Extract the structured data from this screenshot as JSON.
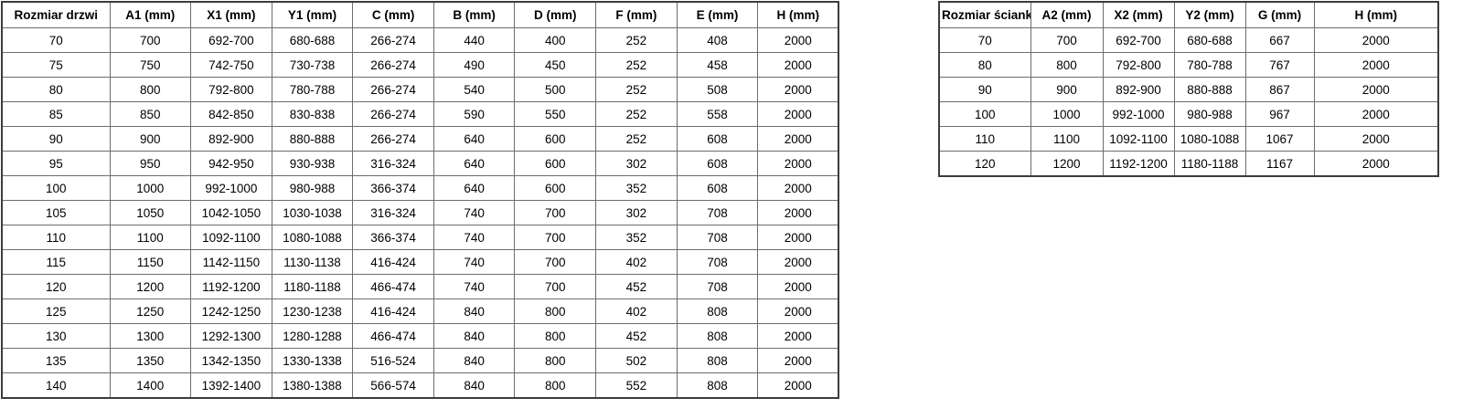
{
  "colors": {
    "background": "#ffffff",
    "text": "#000000",
    "border_outer": "#3c3c3c",
    "border_inner": "#6d6d6d"
  },
  "tables": {
    "doors": {
      "headers": [
        "Rozmiar drzwi",
        "A1 (mm)",
        "X1 (mm)",
        "Y1 (mm)",
        "C (mm)",
        "B (mm)",
        "D (mm)",
        "F (mm)",
        "E (mm)",
        "H (mm)"
      ],
      "rows": [
        [
          "70",
          "700",
          "692-700",
          "680-688",
          "266-274",
          "440",
          "400",
          "252",
          "408",
          "2000"
        ],
        [
          "75",
          "750",
          "742-750",
          "730-738",
          "266-274",
          "490",
          "450",
          "252",
          "458",
          "2000"
        ],
        [
          "80",
          "800",
          "792-800",
          "780-788",
          "266-274",
          "540",
          "500",
          "252",
          "508",
          "2000"
        ],
        [
          "85",
          "850",
          "842-850",
          "830-838",
          "266-274",
          "590",
          "550",
          "252",
          "558",
          "2000"
        ],
        [
          "90",
          "900",
          "892-900",
          "880-888",
          "266-274",
          "640",
          "600",
          "252",
          "608",
          "2000"
        ],
        [
          "95",
          "950",
          "942-950",
          "930-938",
          "316-324",
          "640",
          "600",
          "302",
          "608",
          "2000"
        ],
        [
          "100",
          "1000",
          "992-1000",
          "980-988",
          "366-374",
          "640",
          "600",
          "352",
          "608",
          "2000"
        ],
        [
          "105",
          "1050",
          "1042-1050",
          "1030-1038",
          "316-324",
          "740",
          "700",
          "302",
          "708",
          "2000"
        ],
        [
          "110",
          "1100",
          "1092-1100",
          "1080-1088",
          "366-374",
          "740",
          "700",
          "352",
          "708",
          "2000"
        ],
        [
          "115",
          "1150",
          "1142-1150",
          "1130-1138",
          "416-424",
          "740",
          "700",
          "402",
          "708",
          "2000"
        ],
        [
          "120",
          "1200",
          "1192-1200",
          "1180-1188",
          "466-474",
          "740",
          "700",
          "452",
          "708",
          "2000"
        ],
        [
          "125",
          "1250",
          "1242-1250",
          "1230-1238",
          "416-424",
          "840",
          "800",
          "402",
          "808",
          "2000"
        ],
        [
          "130",
          "1300",
          "1292-1300",
          "1280-1288",
          "466-474",
          "840",
          "800",
          "452",
          "808",
          "2000"
        ],
        [
          "135",
          "1350",
          "1342-1350",
          "1330-1338",
          "516-524",
          "840",
          "800",
          "502",
          "808",
          "2000"
        ],
        [
          "140",
          "1400",
          "1392-1400",
          "1380-1388",
          "566-574",
          "840",
          "800",
          "552",
          "808",
          "2000"
        ]
      ]
    },
    "walls": {
      "headers": [
        "Rozmiar ścianki",
        "A2 (mm)",
        "X2 (mm)",
        "Y2 (mm)",
        "G (mm)",
        "H (mm)"
      ],
      "rows": [
        [
          "70",
          "700",
          "692-700",
          "680-688",
          "667",
          "2000"
        ],
        [
          "80",
          "800",
          "792-800",
          "780-788",
          "767",
          "2000"
        ],
        [
          "90",
          "900",
          "892-900",
          "880-888",
          "867",
          "2000"
        ],
        [
          "100",
          "1000",
          "992-1000",
          "980-988",
          "967",
          "2000"
        ],
        [
          "110",
          "1100",
          "1092-1100",
          "1080-1088",
          "1067",
          "2000"
        ],
        [
          "120",
          "1200",
          "1192-1200",
          "1180-1188",
          "1167",
          "2000"
        ]
      ]
    }
  }
}
